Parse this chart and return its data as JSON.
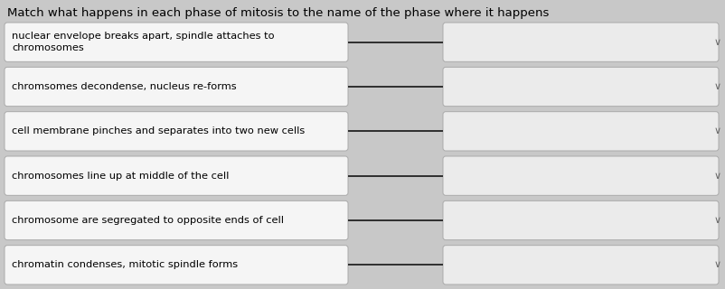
{
  "title": "Match what happens in each phase of mitosis to the name of the phase where it happens",
  "rows": [
    "nuclear envelope breaks apart, spindle attaches to\nchromosomes",
    "chromsomes decondense, nucleus re-forms",
    "cell membrane pinches and separates into two new cells",
    "chromosomes line up at middle of the cell",
    "chromosome are segregated to opposite ends of cell",
    "chromatin condenses, mitotic spindle forms"
  ],
  "bg_color": "#c8c8c8",
  "left_box_facecolor": "#f5f5f5",
  "left_box_edgecolor": "#aaaaaa",
  "right_box_facecolor": "#ebebeb",
  "right_box_edgecolor": "#aaaaaa",
  "line_color": "#222222",
  "title_fontsize": 9.5,
  "row_fontsize": 8.2,
  "chevron_color": "#666666",
  "chevron_fontsize": 8
}
